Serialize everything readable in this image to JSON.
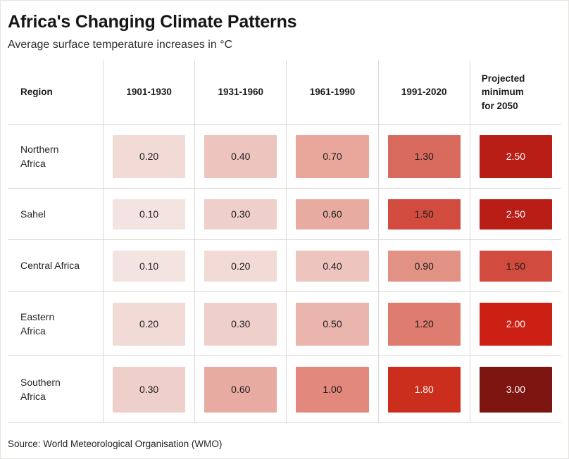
{
  "title": "Africa's Changing Climate Patterns",
  "subtitle": "Average surface temperature increases in °C",
  "source": "Source: World Meteorological Organisation (WMO)",
  "table": {
    "columns": [
      {
        "label": "Region"
      },
      {
        "label": "1901-1930"
      },
      {
        "label": "1931-1960"
      },
      {
        "label": "1961-1990"
      },
      {
        "label": "1991-2020"
      },
      {
        "label": "Projected\nminimum\nfor 2050"
      }
    ],
    "rows": [
      {
        "region": "Northern\nAfrica",
        "cells": [
          {
            "value": "0.20",
            "bg": "#f2dad6",
            "fg": "#1d1d1d"
          },
          {
            "value": "0.40",
            "bg": "#edc4be",
            "fg": "#1d1d1d"
          },
          {
            "value": "0.70",
            "bg": "#e9a69b",
            "fg": "#1d1d1d"
          },
          {
            "value": "1.30",
            "bg": "#d96a5e",
            "fg": "#1d1d1d"
          },
          {
            "value": "2.50",
            "bg": "#b81d16",
            "fg": "#ffffff"
          }
        ]
      },
      {
        "region": "Sahel",
        "cells": [
          {
            "value": "0.10",
            "bg": "#f4e4e1",
            "fg": "#1d1d1d"
          },
          {
            "value": "0.30",
            "bg": "#efcfca",
            "fg": "#1d1d1d"
          },
          {
            "value": "0.60",
            "bg": "#e8aba2",
            "fg": "#1d1d1d"
          },
          {
            "value": "1.50",
            "bg": "#d14b3f",
            "fg": "#1d1d1d"
          },
          {
            "value": "2.50",
            "bg": "#b81d16",
            "fg": "#ffffff"
          }
        ]
      },
      {
        "region": "Central Africa",
        "cells": [
          {
            "value": "0.10",
            "bg": "#f4e4e1",
            "fg": "#1d1d1d"
          },
          {
            "value": "0.20",
            "bg": "#f2dad6",
            "fg": "#1d1d1d"
          },
          {
            "value": "0.40",
            "bg": "#edc4be",
            "fg": "#1d1d1d"
          },
          {
            "value": "0.90",
            "bg": "#e29185",
            "fg": "#1d1d1d"
          },
          {
            "value": "1.50",
            "bg": "#d14b3f",
            "fg": "#1d1d1d"
          }
        ]
      },
      {
        "region": "Eastern\nAfrica",
        "cells": [
          {
            "value": "0.20",
            "bg": "#f2dad6",
            "fg": "#1d1d1d"
          },
          {
            "value": "0.30",
            "bg": "#efcfca",
            "fg": "#1d1d1d"
          },
          {
            "value": "0.50",
            "bg": "#eab5ad",
            "fg": "#1d1d1d"
          },
          {
            "value": "1.20",
            "bg": "#dd7c6f",
            "fg": "#1d1d1d"
          },
          {
            "value": "2.00",
            "bg": "#cd2015",
            "fg": "#ffffff"
          }
        ]
      },
      {
        "region": "Southern\nAfrica",
        "cells": [
          {
            "value": "0.30",
            "bg": "#efcfca",
            "fg": "#1d1d1d"
          },
          {
            "value": "0.60",
            "bg": "#e8aba2",
            "fg": "#1d1d1d"
          },
          {
            "value": "1.00",
            "bg": "#e2887c",
            "fg": "#1d1d1d"
          },
          {
            "value": "1.80",
            "bg": "#cc2e1e",
            "fg": "#ffffff"
          },
          {
            "value": "3.00",
            "bg": "#7d1511",
            "fg": "#ffffff"
          }
        ]
      }
    ]
  },
  "chart_data": {
    "type": "heatmap",
    "title": "Africa's Changing Climate Patterns",
    "subtitle": "Average surface temperature increases in °C",
    "unit": "°C",
    "categories": [
      "1901-1930",
      "1931-1960",
      "1961-1990",
      "1991-2020",
      "Projected minimum for 2050"
    ],
    "series": [
      {
        "name": "Northern Africa",
        "values": [
          0.2,
          0.4,
          0.7,
          1.3,
          2.5
        ]
      },
      {
        "name": "Sahel",
        "values": [
          0.1,
          0.3,
          0.6,
          1.5,
          2.5
        ]
      },
      {
        "name": "Central Africa",
        "values": [
          0.1,
          0.2,
          0.4,
          0.9,
          1.5
        ]
      },
      {
        "name": "Eastern Africa",
        "values": [
          0.2,
          0.3,
          0.5,
          1.2,
          2.0
        ]
      },
      {
        "name": "Southern Africa",
        "values": [
          0.3,
          0.6,
          1.0,
          1.8,
          3.0
        ]
      }
    ],
    "legend": "none",
    "color_scale": {
      "min_color": "#f4e4e1",
      "max_color": "#7d1511"
    },
    "source": "Source: World Meteorological Organisation (WMO)"
  }
}
